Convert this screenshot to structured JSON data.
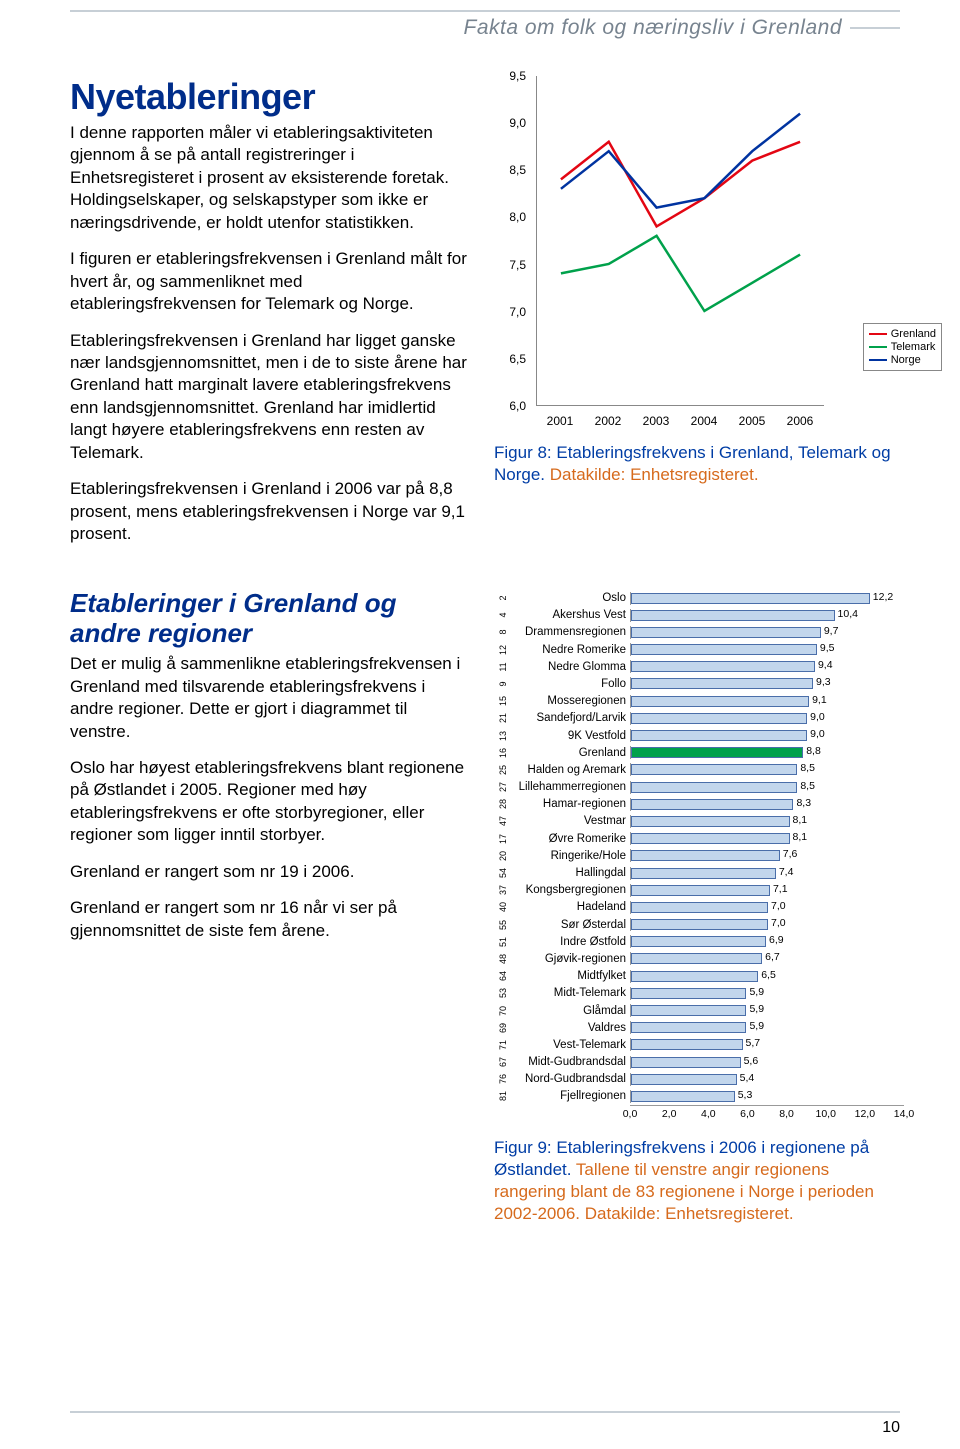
{
  "header": {
    "title": "Fakta om folk og næringsliv i Grenland"
  },
  "section1": {
    "heading": "Nyetableringer",
    "paras": [
      "I denne rapporten måler vi etablerings­aktiviteten gjennom å se på antall registreringer i Enhetsregisteret i prosent av eksisterende foretak. Holdingselskaper, og selskapstyper som ikke er næringsdrivende, er holdt utenfor statistikken.",
      "I figuren er etableringsfrekvensen i Grenland målt for hvert år, og sammenliknet med etableringsfrekvensen for Telemark og Norge.",
      "Etableringsfrekvensen i Grenland har ligget ganske nær landsgjennomsnittet, men i de to siste årene har Grenland hatt marginalt lavere etableringsfrekvens enn landsgjennomsnittet. Grenland har imidlertid langt høyere etableringsfrekvens enn resten av Telemark.",
      "Etableringsfrekvensen i Grenland i 2006 var på 8,8 prosent, mens etableringsfrekvensen i Norge var 9,1 prosent."
    ]
  },
  "section2": {
    "heading": "Etableringer i Grenland og andre regioner",
    "paras": [
      "Det er mulig å sammenlikne etablerings­frekvensen i Grenland med tilsvarende etableringsfrekvens i andre regioner. Dette er gjort i diagrammet til venstre.",
      "Oslo har høyest etableringsfrekvens blant regionene på Østlandet i 2005. Regioner med høy etableringsfrekvens er ofte storbyregioner, eller regioner som ligger inntil storbyer.",
      "Grenland er rangert som nr 19 i 2006.",
      "Grenland er rangert som nr 16 når vi ser på gjennomsnittet de siste fem årene."
    ]
  },
  "line_chart": {
    "type": "line",
    "ylim": [
      6.0,
      9.5
    ],
    "ytick_step": 0.5,
    "xlabels": [
      "2001",
      "2002",
      "2003",
      "2004",
      "2005",
      "2006"
    ],
    "ytick_labels": [
      "6,0",
      "6,5",
      "7,0",
      "7,5",
      "8,0",
      "8,5",
      "9,0",
      "9,5"
    ],
    "series": [
      {
        "name": "Grenland",
        "color": "#e30613",
        "values": [
          8.4,
          8.8,
          7.9,
          8.2,
          8.6,
          8.8
        ]
      },
      {
        "name": "Telemark",
        "color": "#00a14b",
        "values": [
          7.4,
          7.5,
          7.8,
          7.0,
          7.3,
          7.6
        ]
      },
      {
        "name": "Norge",
        "color": "#0033a0",
        "values": [
          8.3,
          8.7,
          8.1,
          8.2,
          8.7,
          9.1
        ]
      }
    ],
    "line_width": 2.5,
    "background": "#ffffff",
    "caption_blue": "Figur 8: Etableringsfrekvens i Grenland, Telemark og Norge. ",
    "caption_orange": "Datakilde: Enhetsregisteret."
  },
  "bar_chart": {
    "type": "bar",
    "xmax": 14.0,
    "xtick_step": 2.0,
    "xtick_labels": [
      "0,0",
      "2,0",
      "4,0",
      "6,0",
      "8,0",
      "10,0",
      "12,0",
      "14,0"
    ],
    "bar_fill_default": "#c2d6ec",
    "bar_fill_highlight": "#00a14b",
    "bar_border": "#4a6ea9",
    "rows": [
      {
        "rank": "2",
        "label": "Oslo",
        "value": 12.2,
        "vlabel": "12,2"
      },
      {
        "rank": "4",
        "label": "Akershus Vest",
        "value": 10.4,
        "vlabel": "10,4"
      },
      {
        "rank": "8",
        "label": "Drammensregionen",
        "value": 9.7,
        "vlabel": "9,7"
      },
      {
        "rank": "12",
        "label": "Nedre Romerike",
        "value": 9.5,
        "vlabel": "9,5"
      },
      {
        "rank": "11",
        "label": "Nedre Glomma",
        "value": 9.4,
        "vlabel": "9,4"
      },
      {
        "rank": "9",
        "label": "Follo",
        "value": 9.3,
        "vlabel": "9,3"
      },
      {
        "rank": "15",
        "label": "Mosseregionen",
        "value": 9.1,
        "vlabel": "9,1"
      },
      {
        "rank": "21",
        "label": "Sandefjord/Larvik",
        "value": 9.0,
        "vlabel": "9,0"
      },
      {
        "rank": "13",
        "label": "9K Vestfold",
        "value": 9.0,
        "vlabel": "9,0"
      },
      {
        "rank": "16",
        "label": "Grenland",
        "value": 8.8,
        "vlabel": "8,8",
        "highlight": true
      },
      {
        "rank": "25",
        "label": "Halden og Aremark",
        "value": 8.5,
        "vlabel": "8,5"
      },
      {
        "rank": "27",
        "label": "Lillehammerregionen",
        "value": 8.5,
        "vlabel": "8,5"
      },
      {
        "rank": "28",
        "label": "Hamar-regionen",
        "value": 8.3,
        "vlabel": "8,3"
      },
      {
        "rank": "47",
        "label": "Vestmar",
        "value": 8.1,
        "vlabel": "8,1"
      },
      {
        "rank": "17",
        "label": "Øvre Romerike",
        "value": 8.1,
        "vlabel": "8,1"
      },
      {
        "rank": "20",
        "label": "Ringerike/Hole",
        "value": 7.6,
        "vlabel": "7,6"
      },
      {
        "rank": "54",
        "label": "Hallingdal",
        "value": 7.4,
        "vlabel": "7,4"
      },
      {
        "rank": "37",
        "label": "Kongsbergregionen",
        "value": 7.1,
        "vlabel": "7,1"
      },
      {
        "rank": "40",
        "label": "Hadeland",
        "value": 7.0,
        "vlabel": "7,0"
      },
      {
        "rank": "55",
        "label": "Sør Østerdal",
        "value": 7.0,
        "vlabel": "7,0"
      },
      {
        "rank": "51",
        "label": "Indre Østfold",
        "value": 6.9,
        "vlabel": "6,9"
      },
      {
        "rank": "48",
        "label": "Gjøvik-regionen",
        "value": 6.7,
        "vlabel": "6,7"
      },
      {
        "rank": "64",
        "label": "Midtfylket",
        "value": 6.5,
        "vlabel": "6,5"
      },
      {
        "rank": "53",
        "label": "Midt-Telemark",
        "value": 5.9,
        "vlabel": "5,9"
      },
      {
        "rank": "70",
        "label": "Glåmdal",
        "value": 5.9,
        "vlabel": "5,9"
      },
      {
        "rank": "69",
        "label": "Valdres",
        "value": 5.9,
        "vlabel": "5,9"
      },
      {
        "rank": "71",
        "label": "Vest-Telemark",
        "value": 5.7,
        "vlabel": "5,7"
      },
      {
        "rank": "67",
        "label": "Midt-Gudbrandsdal",
        "value": 5.6,
        "vlabel": "5,6"
      },
      {
        "rank": "76",
        "label": "Nord-Gudbrandsdal",
        "value": 5.4,
        "vlabel": "5,4"
      },
      {
        "rank": "81",
        "label": "Fjellregionen",
        "value": 5.3,
        "vlabel": "5,3"
      }
    ],
    "caption_blue": "Figur 9: Etableringsfrekvens i 2006 i regionene på Østlandet. ",
    "caption_orange": "Tallene til venstre angir regionens rangering blant de 83 regionene i Norge i perioden 2002-2006. Datakilde: Enhetsregisteret."
  },
  "page_number": "10"
}
